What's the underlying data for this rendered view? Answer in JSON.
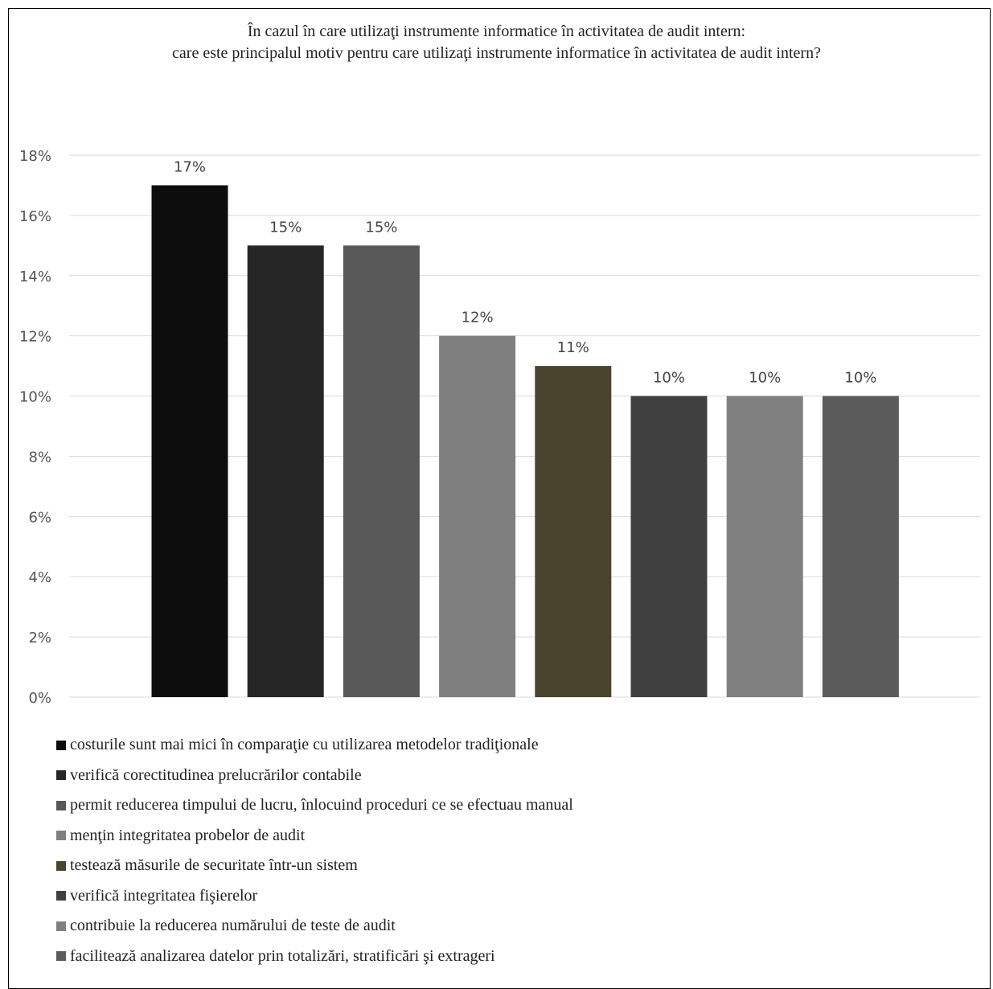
{
  "chart_data": {
    "type": "bar",
    "title_lines": [
      "În cazul în care utilizaţi instrumente informatice în activitatea de audit intern:",
      "care este principalul motiv pentru care utilizaţi instrumente informatice în activitatea de audit intern?"
    ],
    "xlabel": "",
    "ylabel": "",
    "ylim": [
      0,
      18
    ],
    "y_ticks": [
      0,
      2,
      4,
      6,
      8,
      10,
      12,
      14,
      16,
      18
    ],
    "y_tick_labels": [
      "0%",
      "2%",
      "4%",
      "6%",
      "8%",
      "10%",
      "12%",
      "14%",
      "16%",
      "18%"
    ],
    "grid": true,
    "legend_position": "bottom",
    "categories": [
      "costurile sunt mai mici în comparaţie cu utilizarea metodelor tradiţionale",
      "verifică corectitudinea prelucrărilor contabile",
      "permit reducerea timpului de lucru, înlocuind proceduri ce se efectuau manual",
      "menţin integritatea probelor de audit",
      "testează măsurile de securitate într-un sistem",
      "verifică integritatea fişierelor",
      "contribuie la reducerea numărului de teste de audit",
      "facilitează analizarea datelor prin totalizări, stratificări şi extrageri"
    ],
    "values": [
      17,
      15,
      15,
      12,
      11,
      10,
      10,
      10
    ],
    "data_labels": [
      "17%",
      "15%",
      "15%",
      "12%",
      "11%",
      "10%",
      "10%",
      "10%"
    ],
    "colors": [
      "#0d0d0d",
      "#262626",
      "#595959",
      "#7f7f7f",
      "#4a432e",
      "#404040",
      "#808080",
      "#5b5b5b"
    ]
  }
}
